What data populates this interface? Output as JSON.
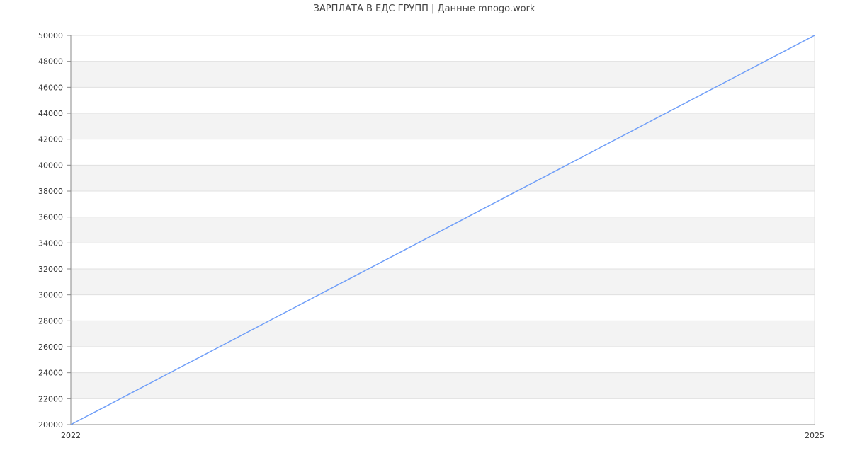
{
  "chart_data": {
    "type": "line",
    "title": "ЗАРПЛАТА В  ЕДС ГРУПП | Данные mnogo.work",
    "xlabel": "",
    "ylabel": "",
    "x_ticks": [
      "2022",
      "2025"
    ],
    "xlim": [
      2022,
      2025
    ],
    "ylim": [
      20000,
      50000
    ],
    "y_ticks": [
      20000,
      22000,
      24000,
      26000,
      28000,
      30000,
      32000,
      34000,
      36000,
      38000,
      40000,
      42000,
      44000,
      46000,
      48000,
      50000
    ],
    "grid": true,
    "banded_background": true,
    "series": [
      {
        "x": [
          2022,
          2025
        ],
        "values": [
          20000,
          50000
        ],
        "color": "#6f9ef8"
      }
    ],
    "colors": {
      "line": "#6f9ef8",
      "band": "#f3f3f3",
      "grid": "#e0e0e0",
      "axis": "#888888"
    }
  }
}
